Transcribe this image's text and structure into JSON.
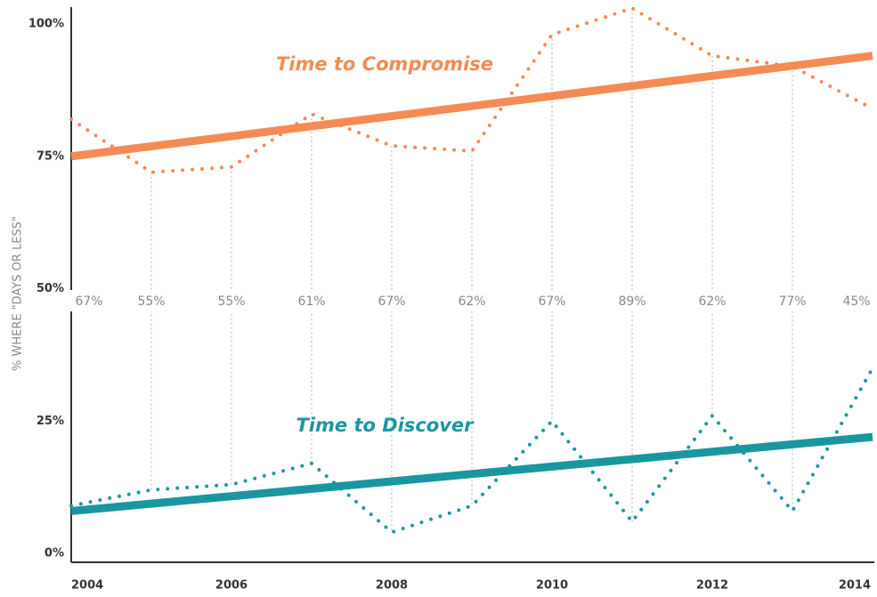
{
  "chart_data": {
    "type": "line",
    "ylabel": "% WHERE \"DAYS OR LESS\"",
    "x": [
      2004,
      2005,
      2006,
      2007,
      2008,
      2009,
      2010,
      2011,
      2012,
      2013,
      2014
    ],
    "xlim": [
      2004,
      2014
    ],
    "xticks": [
      2004,
      2006,
      2008,
      2010,
      2012,
      2014
    ],
    "ylim": [
      0,
      100
    ],
    "yticks": [
      {
        "value": 0,
        "label": "0%"
      },
      {
        "value": 25,
        "label": "25%"
      },
      {
        "value": 50,
        "label": "50%"
      },
      {
        "value": 75,
        "label": "75%"
      },
      {
        "value": 100,
        "label": "100%"
      }
    ],
    "series": [
      {
        "name": "Time to Compromise",
        "color": "#f58a55",
        "values": [
          82,
          72,
          73,
          83,
          77,
          76,
          98,
          103,
          94,
          92,
          84
        ],
        "trend": [
          75,
          94
        ]
      },
      {
        "name": "Time to Discover",
        "color": "#1a96a0",
        "values": [
          9,
          12,
          13,
          17,
          4,
          9,
          25,
          6,
          26,
          8,
          35
        ],
        "trend": [
          8,
          22
        ]
      }
    ],
    "ratio": {
      "values": [
        67,
        55,
        55,
        61,
        67,
        62,
        67,
        89,
        62,
        77,
        45
      ],
      "value_labels": [
        "67%",
        "55%",
        "55%",
        "61%",
        "67%",
        "62%",
        "67%",
        "89%",
        "62%",
        "77%",
        "45%"
      ]
    }
  }
}
